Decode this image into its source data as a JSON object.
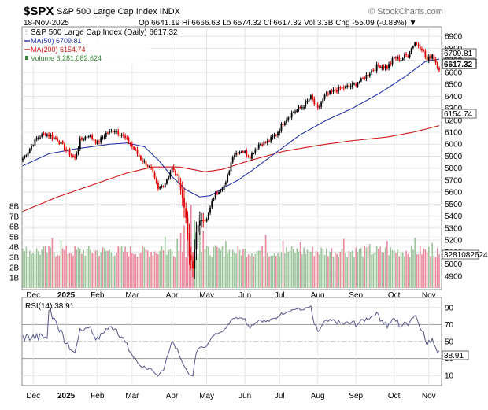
{
  "header": {
    "symbol": "$SPX",
    "index_name": "S&P 500 Large Cap Index INDX",
    "logo": "© StockCharts.com",
    "date": "18-Nov-2025",
    "ohlc": "Op 6641.19  Hi 6666.63  Lo 6574.32  Cl 6617.32  Vol 3.3B  Chg -55.09 (-0.83%) ▼"
  },
  "colors": {
    "up": "#000000",
    "down": "#e00000",
    "ma50": "#2233aa",
    "ma200": "#d01818",
    "vol_up": "#9cc49a",
    "vol_down": "#e88a9c",
    "rsi": "#55558a",
    "grid": "#e4e4e4"
  },
  "icons": {
    "logo": "clover-icon",
    "legend_price": "candlestick-icon",
    "legend_ma50": "line-icon",
    "legend_ma200": "line-icon",
    "legend_volume": "bar-icon"
  },
  "chart_data": [
    {
      "type": "line",
      "title": "S&P 500 Large Cap Index (Daily) 6617.32",
      "legend": [
        "S&P 500 Large Cap Index (Daily) 6617.32",
        "MA(50) 6709.81",
        "MA(200) 6154.74",
        "Volume 3,281,082,624"
      ],
      "x_tick_labels": [
        "Dec",
        "2025",
        "Feb",
        "Mar",
        "Apr",
        "May",
        "Jun",
        "Jul",
        "Aug",
        "Sep",
        "Oct",
        "Nov"
      ],
      "y_ticks": [
        4900,
        5000,
        5100,
        5200,
        5300,
        5400,
        5500,
        5600,
        5700,
        5800,
        5900,
        6000,
        6100,
        6200,
        6300,
        6400,
        6500,
        6600,
        6700,
        6800,
        6900
      ],
      "ylim": [
        4800,
        6980
      ],
      "last_price_label": "6617.32",
      "ma50_label": "6709.81",
      "ma200_label": "6154.74",
      "close_anchors": [
        [
          0,
          5880
        ],
        [
          8,
          6050
        ],
        [
          13,
          6090
        ],
        [
          20,
          6040
        ],
        [
          25,
          5950
        ],
        [
          30,
          5880
        ],
        [
          33,
          6030
        ],
        [
          38,
          6080
        ],
        [
          43,
          6010
        ],
        [
          48,
          6090
        ],
        [
          53,
          6120
        ],
        [
          57,
          6080
        ],
        [
          62,
          6000
        ],
        [
          68,
          5880
        ],
        [
          74,
          5790
        ],
        [
          78,
          5620
        ],
        [
          82,
          5680
        ],
        [
          86,
          5800
        ],
        [
          90,
          5700
        ],
        [
          94,
          5400
        ],
        [
          96,
          5070
        ],
        [
          98,
          4960
        ],
        [
          100,
          5280
        ],
        [
          103,
          5380
        ],
        [
          106,
          5370
        ],
        [
          110,
          5560
        ],
        [
          113,
          5620
        ],
        [
          117,
          5670
        ],
        [
          121,
          5910
        ],
        [
          126,
          5950
        ],
        [
          131,
          5900
        ],
        [
          136,
          6000
        ],
        [
          141,
          6020
        ],
        [
          146,
          6080
        ],
        [
          151,
          6200
        ],
        [
          156,
          6270
        ],
        [
          161,
          6310
        ],
        [
          166,
          6390
        ],
        [
          170,
          6290
        ],
        [
          174,
          6400
        ],
        [
          180,
          6450
        ],
        [
          185,
          6470
        ],
        [
          190,
          6490
        ],
        [
          195,
          6530
        ],
        [
          200,
          6600
        ],
        [
          205,
          6660
        ],
        [
          210,
          6640
        ],
        [
          214,
          6720
        ],
        [
          218,
          6710
        ],
        [
          222,
          6750
        ],
        [
          226,
          6850
        ],
        [
          230,
          6800
        ],
        [
          233,
          6700
        ],
        [
          236,
          6750
        ],
        [
          240,
          6617
        ]
      ],
      "ma50_anchors": [
        [
          0,
          5820
        ],
        [
          15,
          5920
        ],
        [
          30,
          5960
        ],
        [
          50,
          6000
        ],
        [
          60,
          6010
        ],
        [
          70,
          5980
        ],
        [
          78,
          5870
        ],
        [
          86,
          5730
        ],
        [
          94,
          5620
        ],
        [
          102,
          5560
        ],
        [
          108,
          5570
        ],
        [
          116,
          5640
        ],
        [
          124,
          5700
        ],
        [
          132,
          5780
        ],
        [
          145,
          5920
        ],
        [
          160,
          6080
        ],
        [
          175,
          6200
        ],
        [
          190,
          6300
        ],
        [
          205,
          6420
        ],
        [
          220,
          6560
        ],
        [
          232,
          6690
        ],
        [
          240,
          6709.81
        ]
      ],
      "ma200_anchors": [
        [
          0,
          5440
        ],
        [
          20,
          5560
        ],
        [
          40,
          5660
        ],
        [
          60,
          5760
        ],
        [
          75,
          5810
        ],
        [
          90,
          5810
        ],
        [
          105,
          5770
        ],
        [
          115,
          5790
        ],
        [
          130,
          5860
        ],
        [
          150,
          5940
        ],
        [
          170,
          5990
        ],
        [
          190,
          6030
        ],
        [
          210,
          6060
        ],
        [
          225,
          6100
        ],
        [
          240,
          6154.74
        ]
      ]
    },
    {
      "type": "bar",
      "title": "Volume",
      "y_tick_labels": [
        "1B",
        "2B",
        "3B",
        "4B",
        "5B",
        "6B",
        "7B",
        "8B"
      ],
      "y_tick_values": [
        1,
        2,
        3,
        4,
        5,
        6,
        7,
        8
      ],
      "ylim": [
        0,
        8.6
      ],
      "last_value_label": "3281082624",
      "typical_volume_billions": 3.6,
      "spikes": [
        [
          1,
          3.6
        ],
        [
          17,
          4.9
        ],
        [
          22,
          4.7
        ],
        [
          80,
          4.1
        ],
        [
          82,
          5.0
        ],
        [
          89,
          4.8
        ],
        [
          91,
          5.4
        ],
        [
          93,
          6.1
        ],
        [
          95,
          7.2
        ],
        [
          97,
          8.1
        ],
        [
          99,
          6.6
        ],
        [
          102,
          5.4
        ],
        [
          104,
          5.6
        ],
        [
          117,
          4.6
        ],
        [
          140,
          5.2
        ],
        [
          150,
          4.6
        ],
        [
          160,
          4.5
        ],
        [
          185,
          4.8
        ],
        [
          200,
          4.3
        ],
        [
          210,
          4.6
        ],
        [
          226,
          4.9
        ],
        [
          236,
          4.4
        ],
        [
          240,
          3.28
        ]
      ]
    },
    {
      "type": "line",
      "title": "RSI(14) 38.91",
      "x_tick_labels": [
        "Dec",
        "2025",
        "Feb",
        "Mar",
        "Apr",
        "May",
        "Jun",
        "Jul",
        "Aug",
        "Sep",
        "Oct",
        "Nov"
      ],
      "y_ticks": [
        10,
        30,
        50,
        70,
        90
      ],
      "ylim": [
        0,
        100
      ],
      "overbought": 70,
      "oversold": 30,
      "midline": 50,
      "last_value": 38.91,
      "last_value_label": "38.91"
    }
  ]
}
